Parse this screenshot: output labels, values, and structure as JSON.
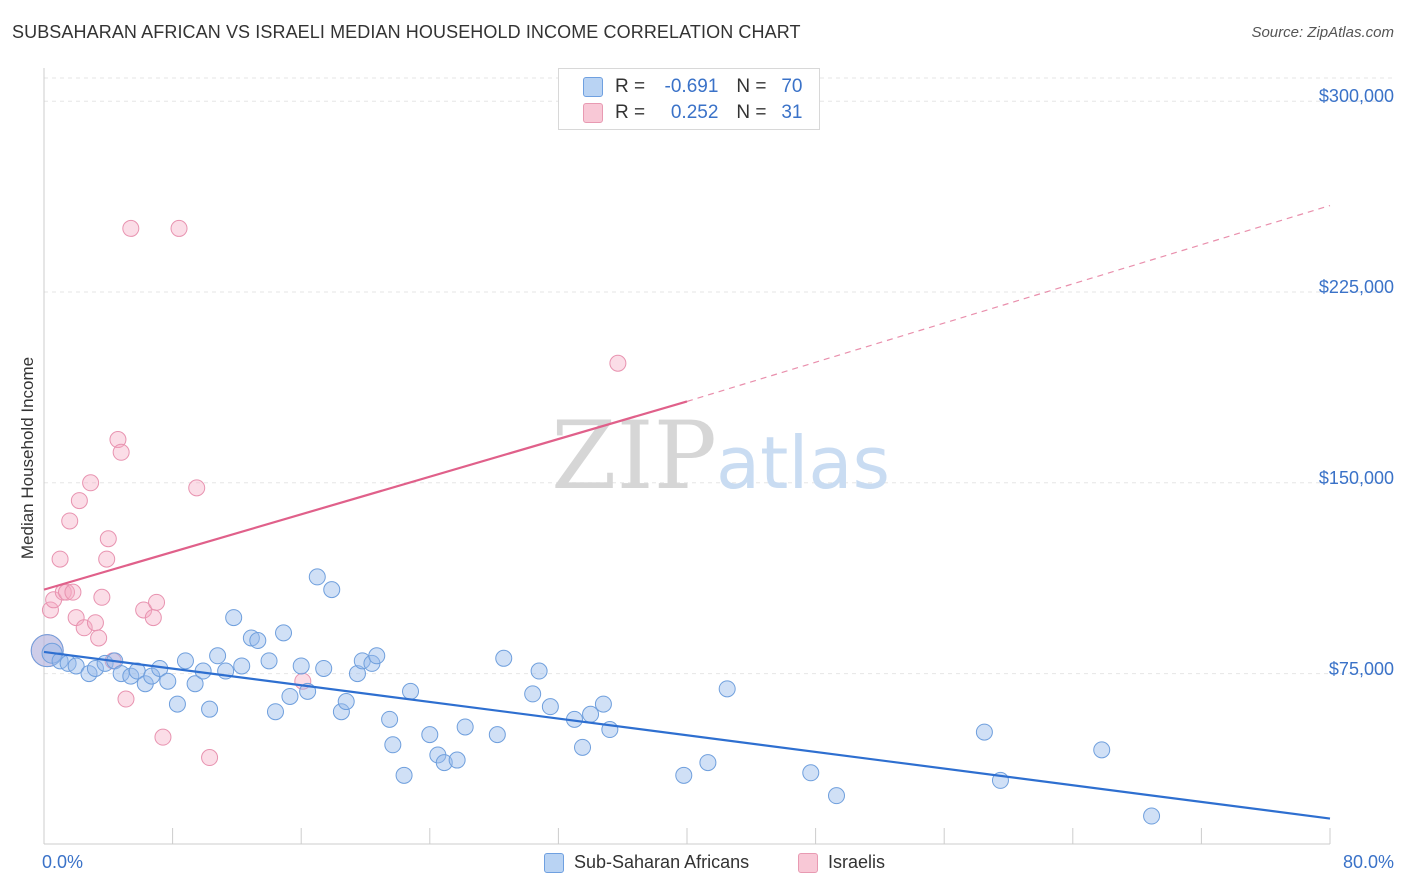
{
  "title": "SUBSAHARAN AFRICAN VS ISRAELI MEDIAN HOUSEHOLD INCOME CORRELATION CHART",
  "source": "Source: ZipAtlas.com",
  "watermark": {
    "zip": "ZIP",
    "atlas": "atlas"
  },
  "legend_top": [
    {
      "r_label": "R =",
      "r_value": "-0.691",
      "n_label": "N =",
      "n_value": "70",
      "fill": "#b9d3f3",
      "stroke": "#6fa0e0"
    },
    {
      "r_label": "R =",
      "r_value": "0.252",
      "n_label": "N =",
      "n_value": "31",
      "fill": "#f8c8d6",
      "stroke": "#e89ab2"
    }
  ],
  "legend_bottom": [
    {
      "label": "Sub-Saharan Africans",
      "fill": "#b9d3f3",
      "stroke": "#6fa0e0"
    },
    {
      "label": "Israelis",
      "fill": "#f8c8d6",
      "stroke": "#e89ab2"
    }
  ],
  "colors": {
    "blue_point_fill": "rgba(150,187,235,0.45)",
    "blue_point_stroke": "#6f9fdd",
    "blue_line": "#2e6fd0",
    "pink_point_fill": "rgba(245,170,195,0.40)",
    "pink_point_stroke": "#e893b0",
    "pink_line": "#e0608a",
    "grid": "#e6e6e6",
    "axis_label": "#3a72c8"
  },
  "chart_data": {
    "type": "scatter",
    "title": "SUBSAHARAN AFRICAN VS ISRAELI MEDIAN HOUSEHOLD INCOME CORRELATION CHART",
    "xlabel": "",
    "ylabel": "Median Household Income",
    "xlim": [
      0,
      80
    ],
    "ylim": [
      8000,
      317000
    ],
    "x_tick_labels": [
      "0.0%",
      "80.0%"
    ],
    "y_ticks": [
      75000,
      150000,
      225000,
      300000
    ],
    "y_tick_labels": [
      "$75,000",
      "$150,000",
      "$225,000",
      "$300,000"
    ],
    "grid": true,
    "series": [
      {
        "name": "Sub-Saharan Africans",
        "r": -0.691,
        "n": 70,
        "trend": {
          "x": [
            0,
            80
          ],
          "y": [
            83500,
            18000
          ],
          "dashed_extension": false
        },
        "points": [
          [
            0.2,
            84000,
            16
          ],
          [
            0.5,
            83000,
            10
          ],
          [
            1.0,
            80000,
            8
          ],
          [
            1.5,
            79000,
            8
          ],
          [
            2.0,
            78000,
            8
          ],
          [
            2.8,
            75000,
            8
          ],
          [
            3.2,
            77000,
            8
          ],
          [
            3.8,
            79000,
            8
          ],
          [
            4.4,
            80000,
            8
          ],
          [
            4.8,
            75000,
            8
          ],
          [
            5.4,
            74000,
            8
          ],
          [
            5.8,
            76000,
            8
          ],
          [
            6.3,
            71000,
            8
          ],
          [
            6.7,
            74000,
            8
          ],
          [
            7.2,
            77000,
            8
          ],
          [
            7.7,
            72000,
            8
          ],
          [
            8.3,
            63000,
            8
          ],
          [
            8.8,
            80000,
            8
          ],
          [
            9.4,
            71000,
            8
          ],
          [
            9.9,
            76000,
            8
          ],
          [
            10.3,
            61000,
            8
          ],
          [
            10.8,
            82000,
            8
          ],
          [
            11.3,
            76000,
            8
          ],
          [
            11.8,
            97000,
            8
          ],
          [
            12.3,
            78000,
            8
          ],
          [
            12.9,
            89000,
            8
          ],
          [
            13.3,
            88000,
            8
          ],
          [
            14.0,
            80000,
            8
          ],
          [
            14.4,
            60000,
            8
          ],
          [
            14.9,
            91000,
            8
          ],
          [
            15.3,
            66000,
            8
          ],
          [
            16.0,
            78000,
            8
          ],
          [
            16.4,
            68000,
            8
          ],
          [
            17.0,
            113000,
            8
          ],
          [
            17.4,
            77000,
            8
          ],
          [
            17.9,
            108000,
            8
          ],
          [
            18.5,
            60000,
            8
          ],
          [
            18.8,
            64000,
            8
          ],
          [
            19.5,
            75000,
            8
          ],
          [
            19.8,
            80000,
            8
          ],
          [
            20.4,
            79000,
            8
          ],
          [
            20.7,
            82000,
            8
          ],
          [
            21.5,
            57000,
            8
          ],
          [
            21.7,
            47000,
            8
          ],
          [
            22.4,
            35000,
            8
          ],
          [
            22.8,
            68000,
            8
          ],
          [
            24.0,
            51000,
            8
          ],
          [
            24.5,
            43000,
            8
          ],
          [
            24.9,
            40000,
            8
          ],
          [
            25.7,
            41000,
            8
          ],
          [
            26.2,
            54000,
            8
          ],
          [
            28.2,
            51000,
            8
          ],
          [
            28.6,
            81000,
            8
          ],
          [
            30.4,
            67000,
            8
          ],
          [
            30.8,
            76000,
            8
          ],
          [
            31.5,
            62000,
            8
          ],
          [
            33.0,
            57000,
            8
          ],
          [
            33.5,
            46000,
            8
          ],
          [
            34.0,
            59000,
            8
          ],
          [
            34.8,
            63000,
            8
          ],
          [
            35.2,
            53000,
            8
          ],
          [
            39.8,
            35000,
            8
          ],
          [
            41.3,
            40000,
            8
          ],
          [
            42.5,
            69000,
            8
          ],
          [
            47.7,
            36000,
            8
          ],
          [
            49.3,
            27000,
            8
          ],
          [
            58.5,
            52000,
            8
          ],
          [
            59.5,
            33000,
            8
          ],
          [
            65.8,
            45000,
            8
          ],
          [
            68.9,
            19000,
            8
          ]
        ]
      },
      {
        "name": "Israelis",
        "r": 0.252,
        "n": 31,
        "trend": {
          "x": [
            0,
            40
          ],
          "y": [
            108000,
            182000
          ],
          "dashed_to": [
            80,
            259000
          ]
        },
        "points": [
          [
            0.2,
            84000,
            16
          ],
          [
            0.4,
            100000,
            8
          ],
          [
            0.6,
            104000,
            8
          ],
          [
            1.0,
            120000,
            8
          ],
          [
            1.2,
            107000,
            8
          ],
          [
            1.4,
            107000,
            8
          ],
          [
            1.6,
            135000,
            8
          ],
          [
            1.8,
            107000,
            8
          ],
          [
            2.0,
            97000,
            8
          ],
          [
            2.2,
            143000,
            8
          ],
          [
            2.5,
            93000,
            8
          ],
          [
            2.9,
            150000,
            8
          ],
          [
            3.2,
            95000,
            8
          ],
          [
            3.4,
            89000,
            8
          ],
          [
            3.6,
            105000,
            8
          ],
          [
            3.9,
            120000,
            8
          ],
          [
            4.0,
            128000,
            8
          ],
          [
            4.3,
            80000,
            8
          ],
          [
            4.6,
            167000,
            8
          ],
          [
            4.8,
            162000,
            8
          ],
          [
            5.1,
            65000,
            8
          ],
          [
            5.4,
            250000,
            8
          ],
          [
            6.2,
            100000,
            8
          ],
          [
            6.8,
            97000,
            8
          ],
          [
            7.0,
            103000,
            8
          ],
          [
            7.4,
            50000,
            8
          ],
          [
            8.4,
            250000,
            8
          ],
          [
            9.5,
            148000,
            8
          ],
          [
            10.3,
            42000,
            8
          ],
          [
            16.1,
            72000,
            8
          ],
          [
            35.7,
            197000,
            8
          ]
        ]
      }
    ]
  }
}
